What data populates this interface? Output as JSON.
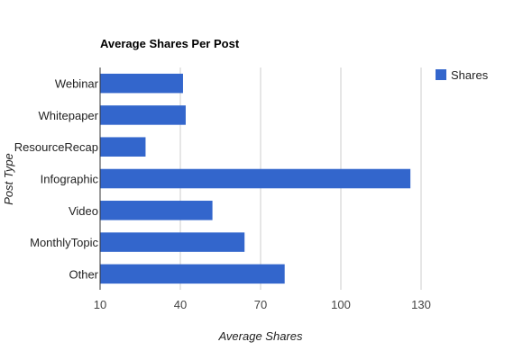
{
  "chart_data": {
    "type": "bar",
    "orientation": "horizontal",
    "title": "Average Shares Per Post",
    "xlabel": "Average Shares",
    "ylabel": "Post Type",
    "categories": [
      "Webinar",
      "Whitepaper",
      "ResourceRecap",
      "Infographic",
      "Video",
      "MonthlyTopic",
      "Other"
    ],
    "series": [
      {
        "name": "Shares",
        "color": "#3366cc",
        "values": [
          41,
          42,
          27,
          126,
          52,
          64,
          79
        ]
      }
    ],
    "xlim": [
      10,
      130
    ],
    "xticks": [
      "10",
      "40",
      "70",
      "100",
      "130"
    ],
    "grid": true,
    "legend_position": "right"
  }
}
